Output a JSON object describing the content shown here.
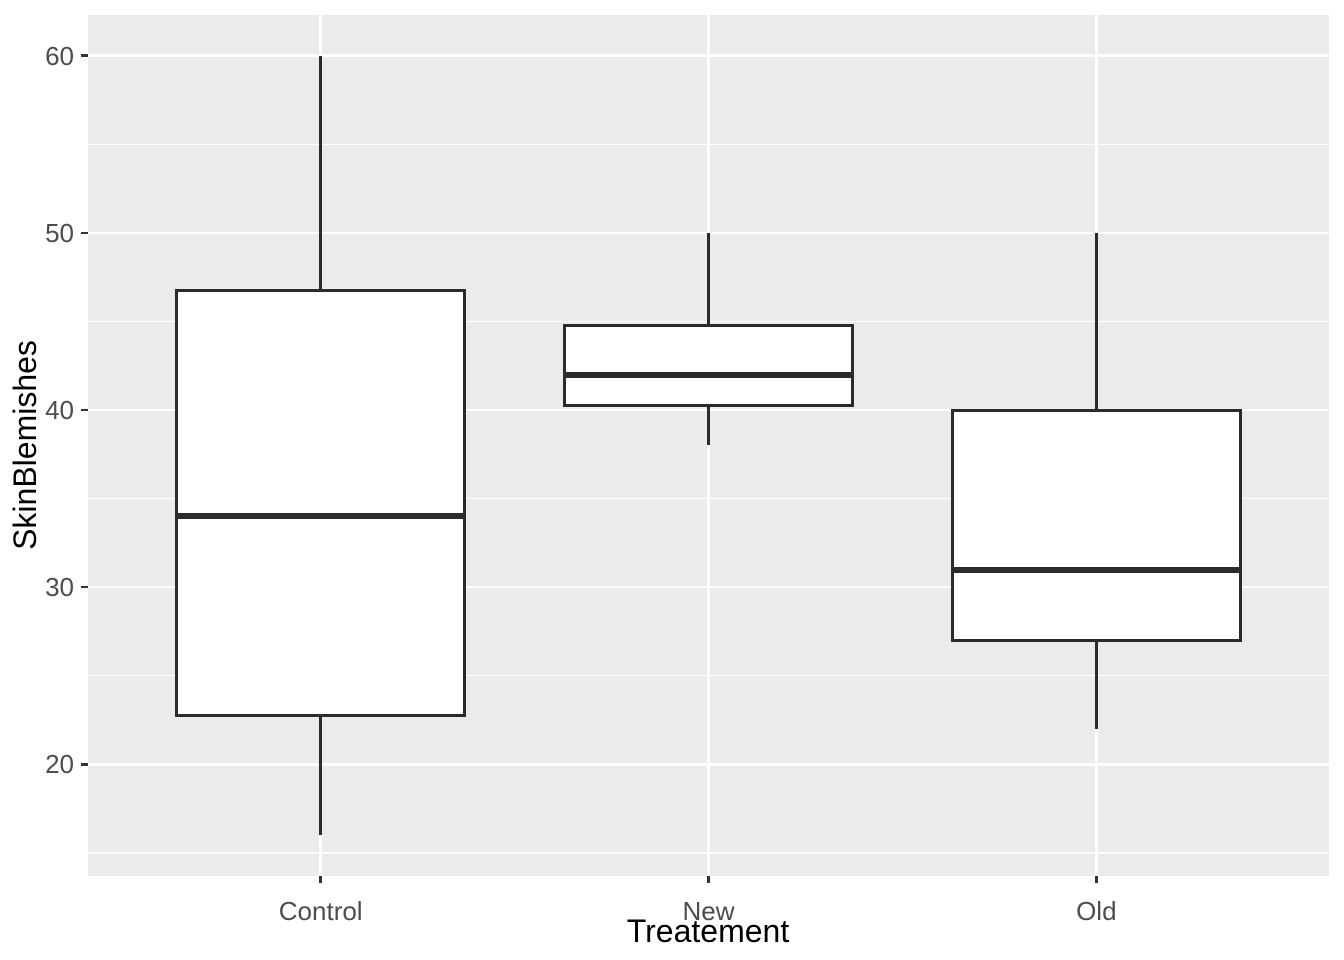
{
  "figure": {
    "background": "#ffffff",
    "panel_background": "#EBEBEB",
    "grid_color": "#ffffff",
    "box_fill": "#ffffff",
    "box_stroke": "#2b2b2b",
    "tick_mark_color": "#333333",
    "tick_label_color": "#4d4d4d",
    "axis_title_color": "#000000"
  },
  "chart_data": {
    "type": "boxplot",
    "title": "",
    "xlabel": "Treatement",
    "ylabel": "SkinBlemishes",
    "categories": [
      "Control",
      "New",
      "Old"
    ],
    "y_ticks": [
      20,
      30,
      40,
      50,
      60
    ],
    "y_minor_ticks": [
      15,
      25,
      35,
      45,
      55
    ],
    "ylim": [
      13.7,
      62.3
    ],
    "grid": "on",
    "legend": "none",
    "series": [
      {
        "category": "Control",
        "min": 16,
        "q1": 22.75,
        "median": 34,
        "q3": 46.75,
        "max": 60
      },
      {
        "category": "New",
        "min": 38,
        "q1": 40.25,
        "median": 42,
        "q3": 44.75,
        "max": 50
      },
      {
        "category": "Old",
        "min": 22,
        "q1": 27,
        "median": 31,
        "q3": 40,
        "max": 50
      }
    ]
  }
}
